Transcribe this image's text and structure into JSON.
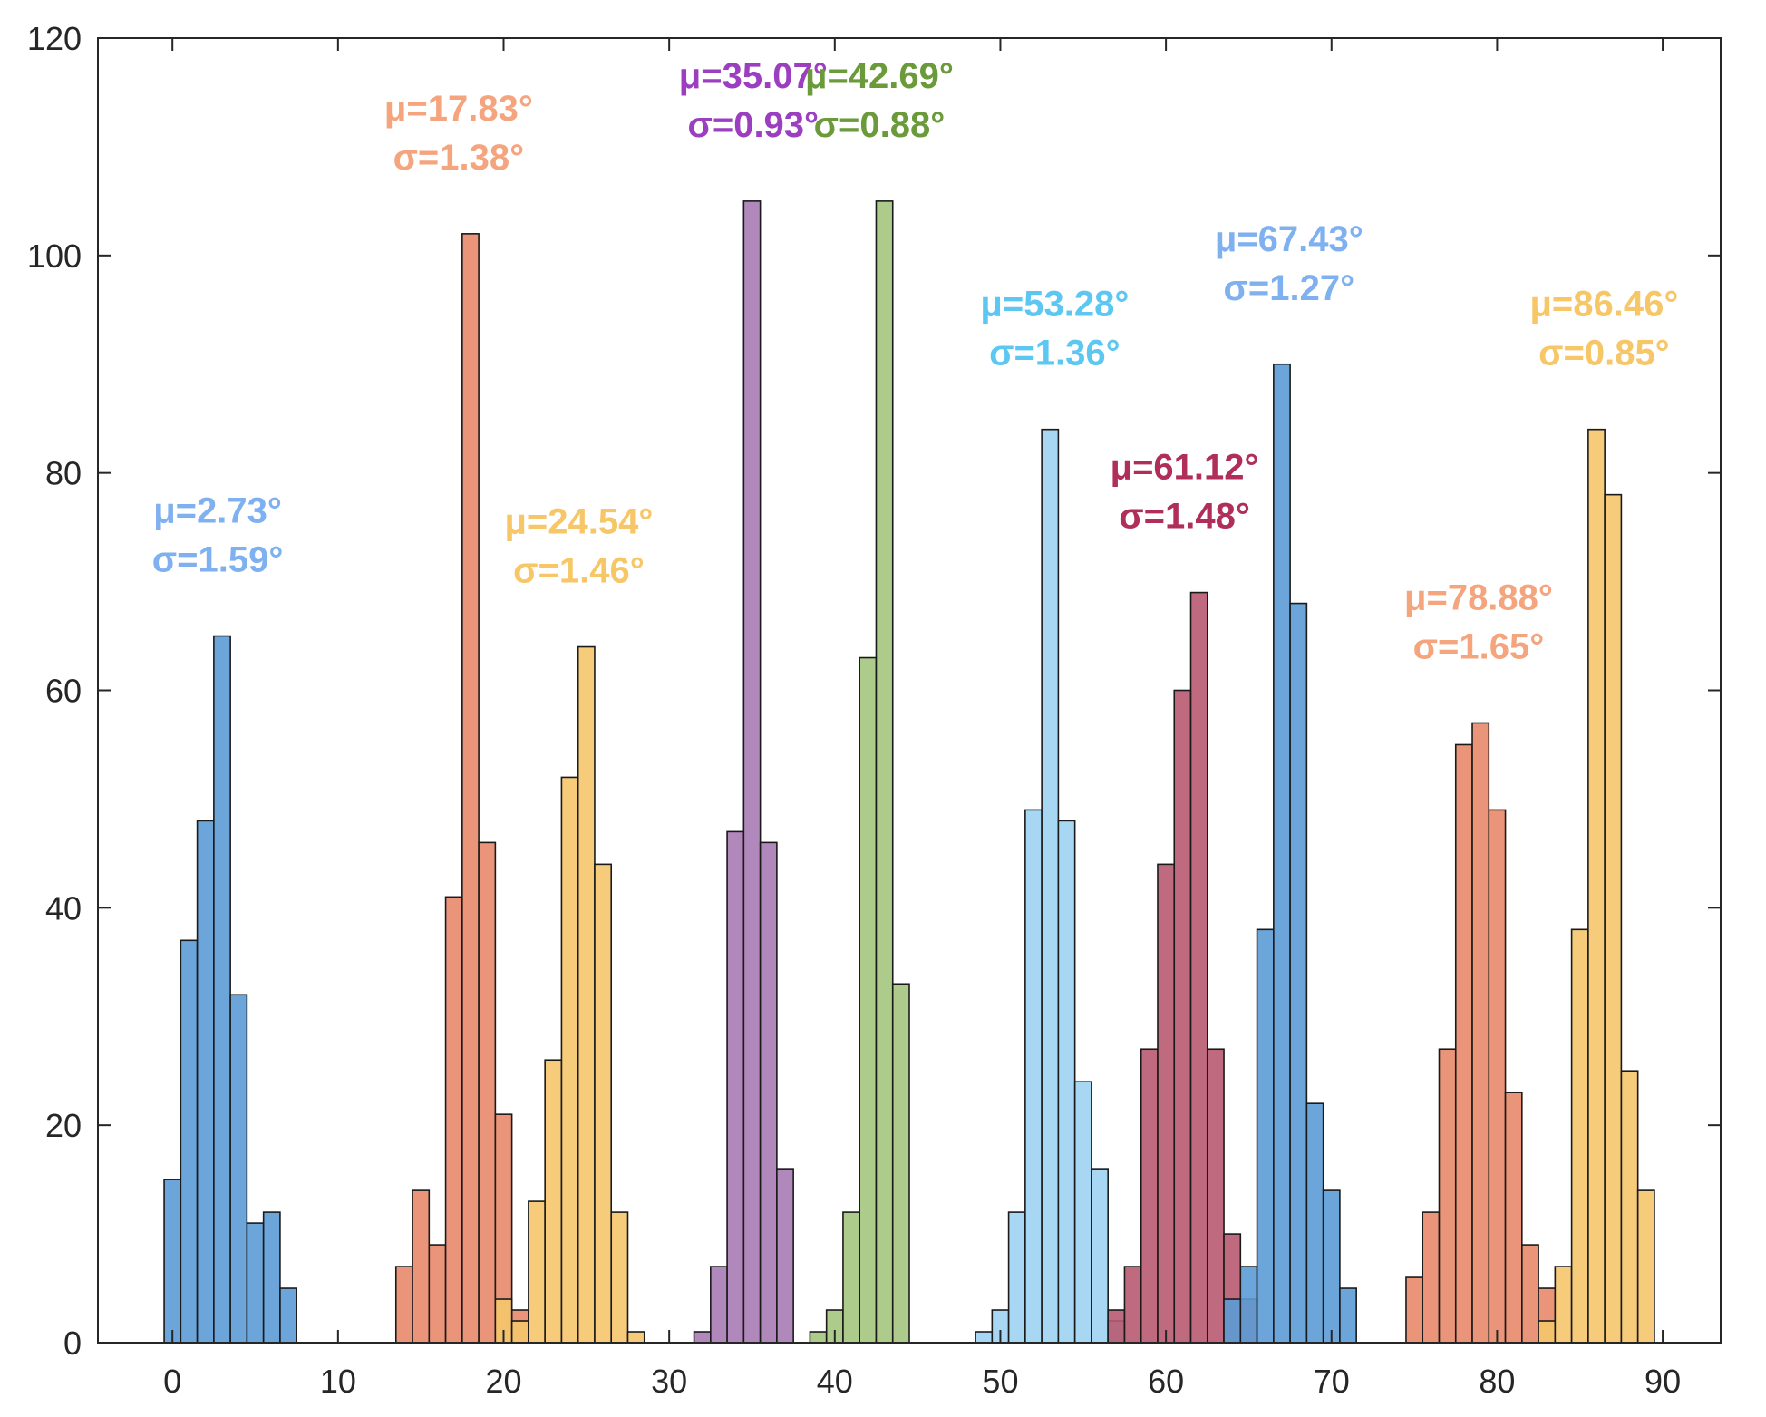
{
  "chart_data": {
    "type": "bar",
    "title": "",
    "xlabel": "",
    "ylabel": "",
    "xlim": [
      -4.5,
      93.5
    ],
    "ylim": [
      0,
      120
    ],
    "bin_width": 1,
    "grid": false,
    "xticks": [
      0,
      10,
      20,
      30,
      40,
      50,
      60,
      70,
      80,
      90
    ],
    "yticks": [
      0,
      20,
      40,
      60,
      80,
      100,
      120
    ],
    "series": [
      {
        "name": "μ=2.73°",
        "color": "#5B9BD5",
        "annotation": [
          "μ=2.73°",
          "σ=1.59°"
        ],
        "label_color": "#7FB0F0",
        "bins": [
          [
            0,
            15
          ],
          [
            1,
            37
          ],
          [
            2,
            48
          ],
          [
            3,
            65
          ],
          [
            4,
            32
          ],
          [
            5,
            11
          ],
          [
            6,
            12
          ],
          [
            7,
            5
          ]
        ]
      },
      {
        "name": "μ=17.83°",
        "color": "#E8896A",
        "annotation": [
          "μ=17.83°",
          "σ=1.38°"
        ],
        "label_color": "#F4A57E",
        "bins": [
          [
            14,
            7
          ],
          [
            15,
            14
          ],
          [
            16,
            9
          ],
          [
            17,
            41
          ],
          [
            18,
            102
          ],
          [
            19,
            46
          ],
          [
            20,
            21
          ],
          [
            21,
            3
          ]
        ]
      },
      {
        "name": "μ=24.54°",
        "color": "#F5C56C",
        "annotation": [
          "μ=24.54°",
          "σ=1.46°"
        ],
        "label_color": "#F7C667",
        "bins": [
          [
            20,
            4
          ],
          [
            21,
            2
          ],
          [
            22,
            13
          ],
          [
            23,
            26
          ],
          [
            24,
            52
          ],
          [
            25,
            64
          ],
          [
            26,
            44
          ],
          [
            27,
            12
          ],
          [
            28,
            1
          ]
        ]
      },
      {
        "name": "μ=35.07°",
        "color": "#A87BB5",
        "annotation": [
          "μ=35.07°",
          "σ=0.93°"
        ],
        "label_color": "#9B3FC0",
        "bins": [
          [
            32,
            1
          ],
          [
            33,
            7
          ],
          [
            34,
            47
          ],
          [
            35,
            105
          ],
          [
            36,
            46
          ],
          [
            37,
            16
          ]
        ]
      },
      {
        "name": "μ=42.69°",
        "color": "#A4C57E",
        "annotation": [
          "μ=42.69°",
          "σ=0.88°"
        ],
        "label_color": "#6A9A3A",
        "bins": [
          [
            39,
            1
          ],
          [
            40,
            3
          ],
          [
            41,
            12
          ],
          [
            42,
            63
          ],
          [
            43,
            105
          ],
          [
            44,
            33
          ]
        ]
      },
      {
        "name": "μ=53.28°",
        "color": "#9DD3F2",
        "annotation": [
          "μ=53.28°",
          "σ=1.36°"
        ],
        "label_color": "#5CC8F2",
        "bins": [
          [
            49,
            1
          ],
          [
            50,
            3
          ],
          [
            51,
            12
          ],
          [
            52,
            49
          ],
          [
            53,
            84
          ],
          [
            54,
            48
          ],
          [
            55,
            24
          ],
          [
            56,
            16
          ],
          [
            57,
            2
          ]
        ]
      },
      {
        "name": "μ=61.12°",
        "color": "#B85A70",
        "annotation": [
          "μ=61.12°",
          "σ=1.48°"
        ],
        "label_color": "#B02E5A",
        "bins": [
          [
            57,
            3
          ],
          [
            58,
            7
          ],
          [
            59,
            27
          ],
          [
            60,
            44
          ],
          [
            61,
            60
          ],
          [
            62,
            69
          ],
          [
            63,
            27
          ],
          [
            64,
            10
          ],
          [
            65,
            4
          ]
        ]
      },
      {
        "name": "μ=67.43°",
        "color": "#5B9BD5",
        "annotation": [
          "μ=67.43°",
          "σ=1.27°"
        ],
        "label_color": "#7FB0F0",
        "bins": [
          [
            64,
            4
          ],
          [
            65,
            7
          ],
          [
            66,
            38
          ],
          [
            67,
            90
          ],
          [
            68,
            68
          ],
          [
            69,
            22
          ],
          [
            70,
            14
          ],
          [
            71,
            5
          ]
        ]
      },
      {
        "name": "μ=78.88°",
        "color": "#E8896A",
        "annotation": [
          "μ=78.88°",
          "σ=1.65°"
        ],
        "label_color": "#F4A57E",
        "bins": [
          [
            75,
            6
          ],
          [
            76,
            12
          ],
          [
            77,
            27
          ],
          [
            78,
            55
          ],
          [
            79,
            57
          ],
          [
            80,
            49
          ],
          [
            81,
            23
          ],
          [
            82,
            9
          ],
          [
            83,
            5
          ]
        ]
      },
      {
        "name": "μ=86.46°",
        "color": "#F5C56C",
        "annotation": [
          "μ=86.46°",
          "σ=0.85°"
        ],
        "label_color": "#F7C667",
        "bins": [
          [
            83,
            2
          ],
          [
            84,
            7
          ],
          [
            85,
            38
          ],
          [
            86,
            84
          ],
          [
            87,
            78
          ],
          [
            88,
            25
          ],
          [
            89,
            14
          ]
        ]
      }
    ]
  }
}
